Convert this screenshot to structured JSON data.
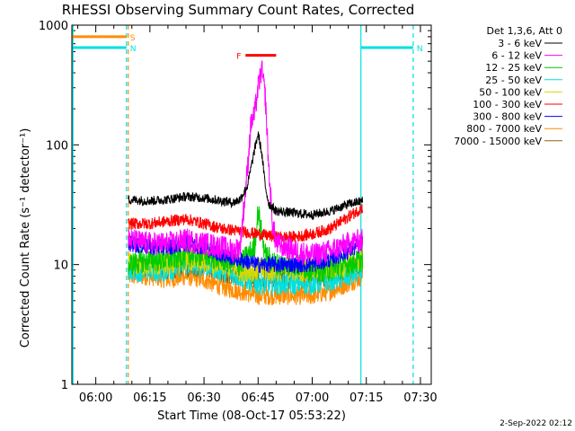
{
  "chart_data": {
    "type": "line",
    "title": "RHESSI Observing Summary Count Rates, Corrected",
    "xlabel": "Start Time (08-Oct-17 05:53:22)",
    "ylabel": "Corrected Count Rate (s⁻¹ detector⁻¹)",
    "yscale": "log",
    "ylim": [
      1,
      1000
    ],
    "xlim": [
      "05:53:22",
      "07:33:00"
    ],
    "x_ticks": [
      "06:00",
      "06:15",
      "06:30",
      "06:45",
      "07:00",
      "07:15",
      "07:30"
    ],
    "y_ticks": [
      "1",
      "10",
      "100",
      "1000"
    ],
    "legend_title": "Det 1,3,6, Att 0",
    "legend_position": "right",
    "data_gap": [
      "05:53:22",
      "06:09:30"
    ],
    "series": [
      {
        "name": "3 - 6 keV",
        "color": "#000000",
        "x": [
          "06:09",
          "06:15",
          "06:20",
          "06:25",
          "06:30",
          "06:35",
          "06:38",
          "06:40",
          "06:42",
          "06:44",
          "06:45",
          "06:46",
          "06:47",
          "06:48",
          "06:50",
          "06:55",
          "07:00",
          "07:05",
          "07:10",
          "07:14"
        ],
        "y": [
          35,
          34,
          35,
          37,
          36,
          34,
          33,
          35,
          45,
          90,
          125,
          85,
          45,
          32,
          28,
          27,
          26,
          28,
          32,
          34
        ]
      },
      {
        "name": "6 - 12 keV",
        "color": "#ff00ff",
        "x": [
          "06:09",
          "06:15",
          "06:20",
          "06:25",
          "06:30",
          "06:35",
          "06:38",
          "06:40",
          "06:42",
          "06:43",
          "06:44",
          "06:45",
          "06:46",
          "06:47",
          "06:48",
          "06:49",
          "06:50",
          "06:55",
          "07:00",
          "07:05",
          "07:10",
          "07:14"
        ],
        "y": [
          16,
          15,
          15,
          16,
          15,
          14,
          13,
          14,
          60,
          150,
          180,
          300,
          430,
          250,
          60,
          22,
          15,
          13,
          12,
          13,
          15,
          16
        ]
      },
      {
        "name": "12 - 25 keV",
        "color": "#00cc00",
        "x": [
          "06:09",
          "06:15",
          "06:20",
          "06:25",
          "06:30",
          "06:35",
          "06:40",
          "06:44",
          "06:45",
          "06:46",
          "06:47",
          "06:50",
          "06:55",
          "07:00",
          "07:05",
          "07:10",
          "07:14"
        ],
        "y": [
          10,
          11,
          11,
          12,
          12,
          11,
          10,
          14,
          28,
          18,
          12,
          10,
          10,
          9,
          9,
          10,
          11
        ]
      },
      {
        "name": "25 - 50 keV",
        "color": "#00e0e0",
        "x": [
          "06:09",
          "06:15",
          "06:20",
          "06:25",
          "06:30",
          "06:35",
          "06:40",
          "06:45",
          "06:50",
          "06:55",
          "07:00",
          "07:05",
          "07:10",
          "07:14"
        ],
        "y": [
          9,
          9,
          9,
          10,
          10,
          9,
          8,
          7,
          7,
          7,
          7,
          7.5,
          8,
          9
        ]
      },
      {
        "name": "50 - 100 keV",
        "color": "#d8d800",
        "x": [
          "06:09",
          "06:15",
          "06:20",
          "06:25",
          "06:30",
          "06:35",
          "06:40",
          "06:45",
          "06:50",
          "06:55",
          "07:00",
          "07:05",
          "07:10",
          "07:14"
        ],
        "y": [
          10,
          10,
          10,
          11,
          11,
          10,
          9,
          9,
          9,
          9,
          9,
          9,
          10,
          11
        ]
      },
      {
        "name": "100 - 300 keV",
        "color": "#ff0000",
        "x": [
          "06:09",
          "06:15",
          "06:20",
          "06:25",
          "06:30",
          "06:35",
          "06:40",
          "06:45",
          "06:50",
          "06:55",
          "07:00",
          "07:05",
          "07:10",
          "07:14"
        ],
        "y": [
          22,
          22,
          23,
          24,
          22,
          20,
          19,
          18,
          17,
          17,
          18,
          20,
          25,
          30
        ]
      },
      {
        "name": "300 - 800 keV",
        "color": "#0000ff",
        "x": [
          "06:09",
          "06:15",
          "06:20",
          "06:25",
          "06:30",
          "06:35",
          "06:40",
          "06:45",
          "06:50",
          "06:55",
          "07:00",
          "07:05",
          "07:10",
          "07:14"
        ],
        "y": [
          15,
          14,
          14,
          15,
          14,
          12,
          11,
          10,
          10,
          10,
          10,
          11,
          13,
          15
        ]
      },
      {
        "name": "800 - 7000 keV",
        "color": "#ff8c00",
        "x": [
          "06:09",
          "06:15",
          "06:20",
          "06:25",
          "06:30",
          "06:35",
          "06:40",
          "06:45",
          "06:50",
          "06:55",
          "07:00",
          "07:05",
          "07:10",
          "07:14"
        ],
        "y": [
          8,
          8,
          7.5,
          8,
          7.5,
          6.5,
          6,
          5.5,
          5.5,
          5.5,
          5.5,
          6,
          7,
          8
        ]
      },
      {
        "name": "7000 - 15000 keV",
        "color": "#8b6508",
        "x": [
          "06:09",
          "06:15",
          "06:20",
          "06:25",
          "06:30",
          "06:35",
          "06:40",
          "06:45",
          "06:50",
          "06:55",
          "07:00",
          "07:05",
          "07:10",
          "07:14"
        ],
        "y": [
          9.5,
          9.5,
          9,
          9.5,
          9.5,
          8.5,
          8,
          7.5,
          7.5,
          7.5,
          7.5,
          8,
          9,
          10
        ]
      }
    ],
    "flags": [
      {
        "label": "S",
        "color": "#ff8c00",
        "start": "05:53:22",
        "end": "06:08:30",
        "level": 800
      },
      {
        "label": "N",
        "color": "#00e0e0",
        "start": "05:53:22",
        "end": "06:08:30",
        "level": 650
      },
      {
        "label": "N",
        "color": "#00e0e0",
        "start": "07:13:30",
        "end": "07:28:00",
        "level": 650
      },
      {
        "label": "F",
        "color": "#ff0000",
        "start": "06:41:30",
        "end": "06:50:00",
        "level": 560
      }
    ],
    "vertical_lines": [
      {
        "time": "05:53:40",
        "color": "#00e0e0",
        "style": "solid"
      },
      {
        "time": "06:08:30",
        "color": "#00e0e0",
        "style": "dashed"
      },
      {
        "time": "06:09:00",
        "color": "#ff8c00",
        "style": "dashed"
      },
      {
        "time": "07:13:30",
        "color": "#00e0e0",
        "style": "solid"
      },
      {
        "time": "07:28:00",
        "color": "#00e0e0",
        "style": "dashed"
      }
    ]
  },
  "footer": {
    "timestamp": "2-Sep-2022 02:12"
  }
}
